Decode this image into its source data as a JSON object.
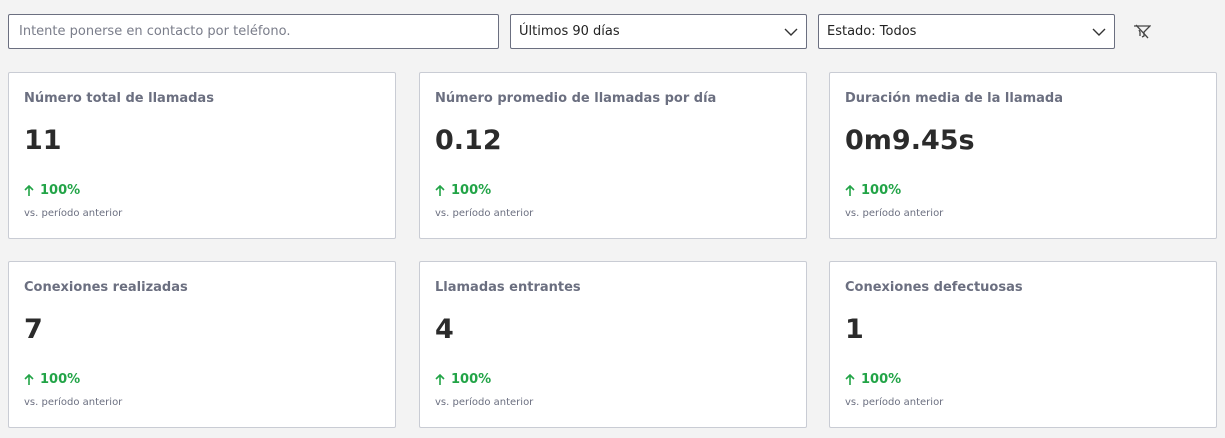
{
  "filters": {
    "search_placeholder": "Intente ponerse en contacto por teléfono.",
    "period_value": "Últimos 90 días",
    "status_value": "Estado: Todos"
  },
  "icons": {
    "clear_filter": "filter-clear-icon",
    "dropdown": "chevron-down-icon",
    "trend": "arrow-up-icon"
  },
  "colors": {
    "trend_positive": "#22a447"
  },
  "cards": [
    {
      "title": "Número total de llamadas",
      "value": "11",
      "change": "100%",
      "comparison": "vs. período anterior"
    },
    {
      "title": "Número promedio de llamadas por día",
      "value": "0.12",
      "change": "100%",
      "comparison": "vs. período anterior"
    },
    {
      "title": "Duración media de la llamada",
      "value": "0m9.45s",
      "change": "100%",
      "comparison": "vs. período anterior"
    },
    {
      "title": "Conexiones realizadas",
      "value": "7",
      "change": "100%",
      "comparison": "vs. período anterior"
    },
    {
      "title": "Llamadas entrantes",
      "value": "4",
      "change": "100%",
      "comparison": "vs. período anterior"
    },
    {
      "title": "Conexiones defectuosas",
      "value": "1",
      "change": "100%",
      "comparison": "vs. período anterior"
    }
  ]
}
